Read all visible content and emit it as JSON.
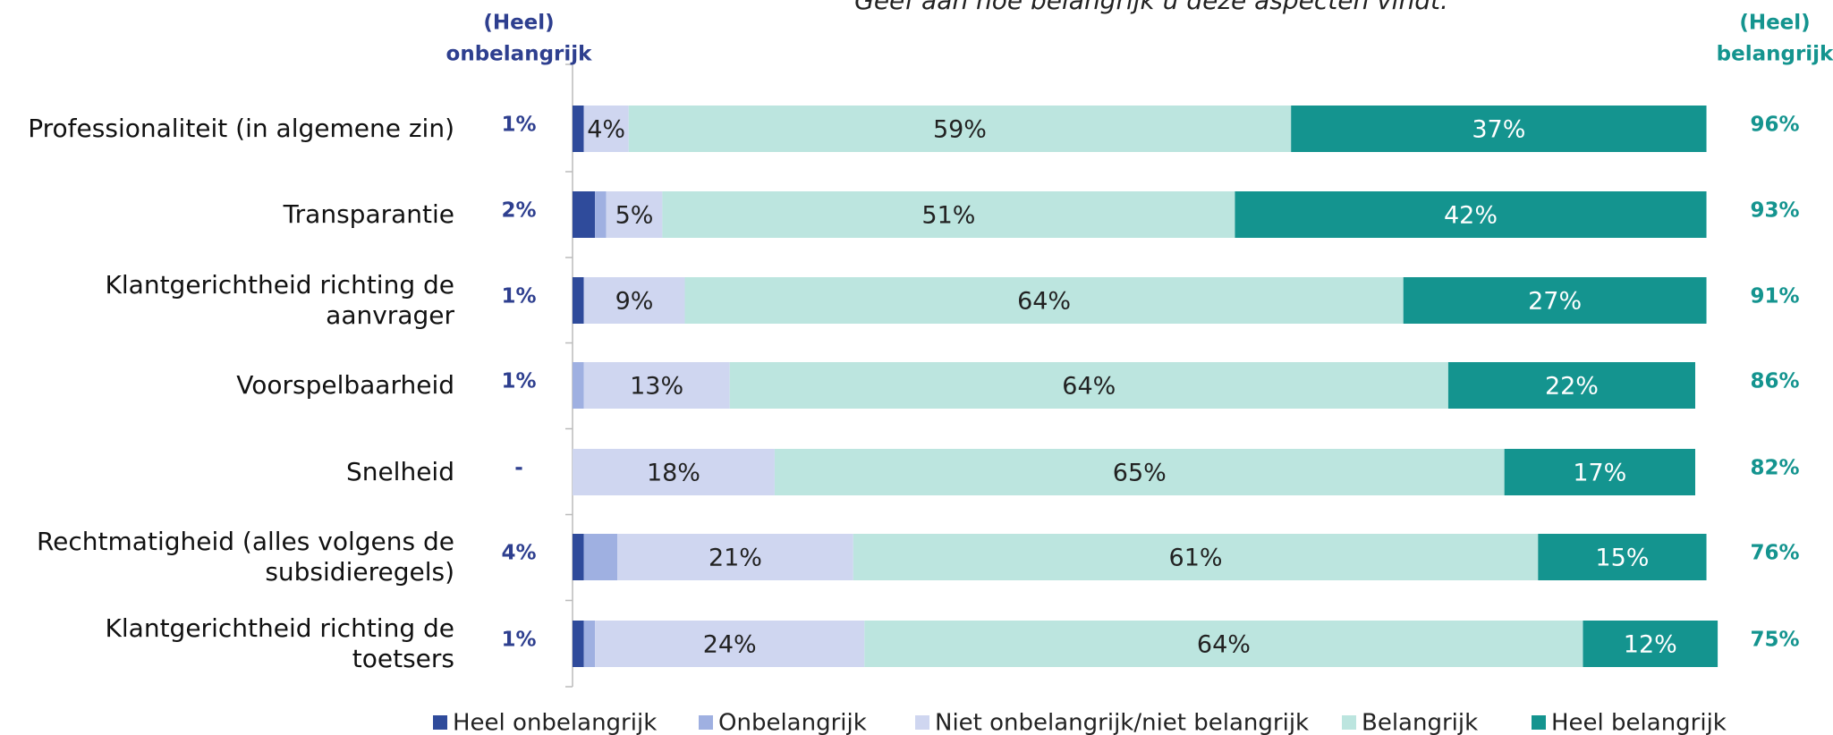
{
  "chart_data": {
    "type": "stacked-barh",
    "title": "Geef aan hoe belangrijk u deze aspecten vindt.",
    "categories": [
      "Professionaliteit (in algemene zin)",
      "Transparantie",
      "Klantgerichtheid richting de aanvrager",
      "Voorspelbaarheid",
      "Snelheid",
      "Rechtmatigheid (alles volgens de subsidieregels)",
      "Klantgerichtheid richting de toetsers"
    ],
    "xlim": [
      0,
      100
    ],
    "series": [
      {
        "name": "Heel onbelangrijk",
        "color": "#2f4b9b",
        "values": [
          1,
          2,
          1,
          0,
          0,
          1,
          1
        ]
      },
      {
        "name": "Onbelangrijk",
        "color": "#9fb0e1",
        "values": [
          0,
          1,
          0,
          1,
          0,
          3,
          1
        ]
      },
      {
        "name": "Niet onbelangrijk/niet belangrijk",
        "color": "#cfd6f0",
        "values": [
          4,
          5,
          9,
          13,
          18,
          21,
          24
        ],
        "value_labels": [
          "4%",
          "5%",
          "9%",
          "13%",
          "18%",
          "21%",
          "24%"
        ]
      },
      {
        "name": "Belangrijk",
        "color": "#bce5df",
        "values": [
          59,
          51,
          64,
          64,
          65,
          61,
          64
        ],
        "value_labels": [
          "59%",
          "51%",
          "64%",
          "64%",
          "65%",
          "61%",
          "64%"
        ]
      },
      {
        "name": "Heel belangrijk",
        "color": "#14948f",
        "values": [
          37,
          42,
          27,
          22,
          17,
          15,
          12
        ],
        "value_labels": [
          "37%",
          "42%",
          "27%",
          "22%",
          "17%",
          "15%",
          "12%"
        ]
      }
    ],
    "low_totals": {
      "title": [
        "(Heel)",
        "onbelangrijk"
      ],
      "labels": [
        "1%",
        "2%",
        "1%",
        "1%",
        "-",
        "4%",
        "1%"
      ],
      "color": "#2e3f8f"
    },
    "high_totals": {
      "title": [
        "(Heel)",
        "belangrijk"
      ],
      "labels": [
        "96%",
        "93%",
        "91%",
        "86%",
        "82%",
        "76%",
        "75%"
      ],
      "color": "#14948f"
    }
  }
}
